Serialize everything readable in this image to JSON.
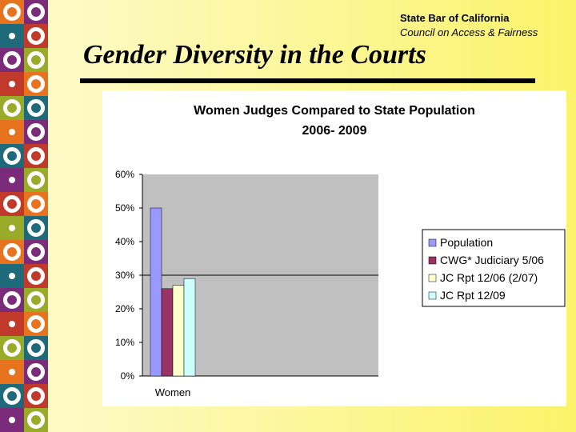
{
  "header": {
    "org": "State Bar of California",
    "council": "Council  on Access & Fairness",
    "title": "Gender Diversity in the Courts"
  },
  "colors": {
    "strip": [
      "#e8731f",
      "#7a2c7a",
      "#9aab2a",
      "#1f6a7a",
      "#c0392b"
    ],
    "plot_bg": "#c0c0c0",
    "population": "#9999ff",
    "cwg": "#993366",
    "jc_0607": "#ffffcc",
    "jc_0912": "#ccffff"
  },
  "chart_data": {
    "type": "bar",
    "title_line1": "Women Judges Compared to State Population",
    "title_line2": "2006- 2009",
    "categories": [
      "Women"
    ],
    "series": [
      {
        "name": "Population",
        "values": [
          0.5
        ],
        "color": "#9999ff"
      },
      {
        "name": "CWG* Judiciary 5/06",
        "values": [
          0.26
        ],
        "color": "#993366"
      },
      {
        "name": "JC Rpt 12/06 (2/07)",
        "values": [
          0.27
        ],
        "color": "#ffffcc"
      },
      {
        "name": "JC Rpt 12/09",
        "values": [
          0.29
        ],
        "color": "#ccffff"
      }
    ],
    "ylim": [
      0,
      0.6
    ],
    "yticks": [
      "0%",
      "10%",
      "20%",
      "30%",
      "40%",
      "50%",
      "60%"
    ],
    "gridline_at": 0.3,
    "legend_position": "right"
  }
}
